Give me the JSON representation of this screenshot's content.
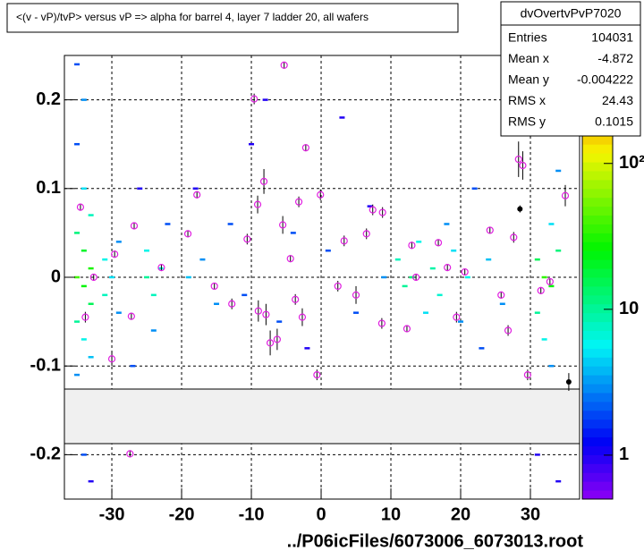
{
  "chart_data": {
    "type": "scatter",
    "title": "<(v - vP)/tvP> versus   vP => alpha for barrel 4, layer 7 ladder 20, all wafers",
    "footer": "../P06icFiles/6073006_6073013.root",
    "xlim": [
      -36.8,
      37.05
    ],
    "xticks": [
      -30,
      -20,
      -10,
      0,
      10,
      20,
      30
    ],
    "ylim": [
      -0.25,
      0.25
    ],
    "yticks": [
      -0.2,
      -0.1,
      0,
      0.1,
      0.2
    ],
    "zlim": [
      0.5,
      550
    ],
    "zscale": "log",
    "zticks": [
      {
        "value": 1,
        "label": "1"
      },
      {
        "value": 10,
        "label": "10"
      },
      {
        "value": 100,
        "label": "10²"
      }
    ],
    "grid": true,
    "stats": {
      "title": "dvOvertvPvP7020",
      "rows": [
        {
          "label": "Entries",
          "value": 104031
        },
        {
          "label": "Mean x",
          "value": -4.872
        },
        {
          "label": "Mean y",
          "value": -0.004222
        },
        {
          "label": "RMS x",
          "value": 24.43
        },
        {
          "label": "RMS y",
          "value": 0.1015
        }
      ]
    },
    "cells": {
      "x": [
        -35,
        -34,
        -35,
        -34,
        -33,
        -35,
        -34,
        -33,
        -35,
        -34,
        -33,
        -35,
        -34,
        -33,
        -35,
        -34,
        -33,
        -31,
        -31,
        -30,
        -29,
        -29,
        -25,
        -24,
        -25,
        -23,
        -24,
        -22,
        -26,
        -27,
        -19,
        -17,
        -15,
        -18,
        -13,
        -11,
        -10,
        -8,
        -6,
        -4,
        -2,
        1,
        3,
        5,
        7,
        9,
        11,
        12,
        13,
        14,
        15,
        16,
        17,
        18,
        19,
        20,
        21,
        22,
        23,
        24,
        26,
        28,
        31,
        32,
        33,
        34,
        31,
        32,
        33,
        34,
        32,
        33,
        31,
        34
      ],
      "y": [
        0.24,
        0.2,
        0.15,
        0.1,
        0.07,
        0.05,
        0.03,
        0.01,
        0.0,
        -0.01,
        -0.03,
        -0.05,
        -0.07,
        -0.09,
        -0.11,
        -0.2,
        -0.23,
        0.02,
        -0.02,
        0.0,
        -0.04,
        0.04,
        0.0,
        -0.02,
        0.03,
        0.01,
        -0.06,
        0.06,
        0.1,
        -0.1,
        0.0,
        0.02,
        -0.03,
        0.1,
        0.06,
        -0.02,
        0.15,
        0.2,
        -0.05,
        0.05,
        -0.08,
        0.03,
        0.18,
        -0.04,
        0.08,
        0.0,
        0.02,
        -0.01,
        0.0,
        0.04,
        -0.04,
        0.01,
        -0.02,
        0.06,
        0.03,
        -0.05,
        0.0,
        0.1,
        -0.08,
        0.02,
        -0.03,
        0.2,
        0.02,
        0.0,
        -0.01,
        0.03,
        -0.04,
        -0.07,
        0.06,
        0.12,
        0.18,
        -0.1,
        -0.2,
        -0.23
      ],
      "z": [
        2,
        3,
        2,
        5,
        8,
        12,
        20,
        30,
        40,
        25,
        15,
        10,
        6,
        4,
        3,
        2,
        1,
        6,
        8,
        5,
        3,
        3,
        10,
        8,
        6,
        7,
        3,
        2,
        1,
        2,
        4,
        3,
        3,
        1,
        2,
        2,
        1,
        1,
        2,
        2,
        1,
        2,
        1,
        2,
        1,
        3,
        8,
        10,
        12,
        6,
        5,
        9,
        7,
        3,
        5,
        3,
        6,
        2,
        2,
        4,
        3,
        1,
        15,
        35,
        25,
        12,
        10,
        6,
        5,
        3,
        2,
        3,
        1,
        1
      ]
    },
    "profile": {
      "name": "profile",
      "color": "#e020e0",
      "x": [
        -5.3,
        -9.6,
        -2.2,
        -8.2,
        -0.1,
        -17.8,
        -9.1,
        -3.2,
        -5.5,
        7.4,
        8.8,
        28.3,
        28.9,
        35.0,
        -34.5,
        -26.8,
        -19.1,
        -10.6,
        -4.4,
        3.3,
        6.5,
        13,
        16.8,
        24.2,
        27.6,
        -29.6,
        -32.6,
        -22.9,
        -15.3,
        -12.8,
        -9.0,
        -7.9,
        -3.7,
        2.4,
        5,
        -27.2,
        -30,
        -33.8,
        -7.3,
        -6.3,
        -2.7,
        -0.6,
        8.7,
        12.3,
        19.4,
        25.8,
        26.8,
        29.6,
        31.5,
        32.8,
        -27.4,
        13.6,
        18.1,
        20.6
      ],
      "y": [
        0.239,
        0.201,
        0.146,
        0.108,
        0.093,
        0.093,
        0.082,
        0.085,
        0.059,
        0.076,
        0.073,
        0.133,
        0.126,
        0.092,
        0.079,
        0.058,
        0.049,
        0.043,
        0.021,
        0.041,
        0.049,
        0.036,
        0.039,
        0.053,
        0.045,
        0.026,
        0.0,
        0.011,
        -0.01,
        -0.03,
        -0.038,
        -0.042,
        -0.025,
        -0.01,
        -0.02,
        -0.044,
        -0.092,
        -0.045,
        -0.074,
        -0.07,
        -0.045,
        -0.11,
        -0.052,
        -0.058,
        -0.045,
        -0.02,
        -0.06,
        -0.11,
        -0.015,
        -0.005,
        -0.199,
        0.0,
        0.011,
        0.006
      ],
      "yerr": [
        0.004,
        0.006,
        0.004,
        0.014,
        0.006,
        0.004,
        0.01,
        0.006,
        0.01,
        0.006,
        0.006,
        0.02,
        0.016,
        0.012,
        0.004,
        0.004,
        0.004,
        0.006,
        0.004,
        0.006,
        0.006,
        0.004,
        0.004,
        0.004,
        0.006,
        0.004,
        0.004,
        0.004,
        0.004,
        0.006,
        0.012,
        0.012,
        0.006,
        0.006,
        0.01,
        0.004,
        0.008,
        0.006,
        0.014,
        0.012,
        0.01,
        0.006,
        0.006,
        0.004,
        0.006,
        0.004,
        0.006,
        0.006,
        0.004,
        0.004,
        0.004,
        0.004,
        0.004,
        0.004
      ]
    },
    "outliers": {
      "name": "outliers",
      "color": "#000000",
      "x": [
        28.5,
        35.5
      ],
      "y": [
        0.077,
        -0.118
      ],
      "yerr": [
        0.004,
        0.01
      ]
    }
  }
}
